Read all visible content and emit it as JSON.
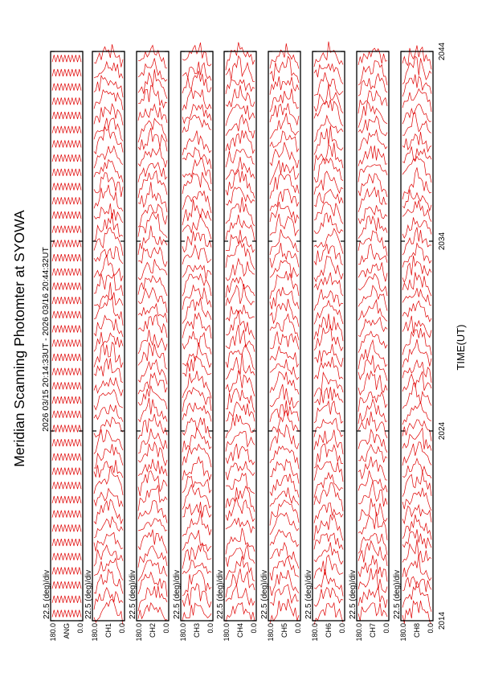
{
  "title": "Meridian Scanning Photomter at SYOWA",
  "time_range": "2026 03/15 20:14:33UT - 2026 03/16 20:44:32UT",
  "chart_data": {
    "type": "line",
    "title": "Meridian Scanning Photomter at SYOWA",
    "subtitle": "2026 03/15 20:14:33UT - 2026 03/16 20:44:32UT",
    "xlabel": "TIME(UT)",
    "x_ticks": [
      "2014",
      "2024",
      "2034",
      "2044"
    ],
    "y_ticks": [
      "180.0",
      "0.0"
    ],
    "scale_label": "22.5 (deg)/div",
    "panel_labels": [
      "ANG",
      "CH1",
      "CH2",
      "CH3",
      "CH4",
      "CH5",
      "CH6",
      "CH7",
      "CH8"
    ],
    "n_traces_per_panel": 40,
    "trace_color": "#e00000"
  }
}
